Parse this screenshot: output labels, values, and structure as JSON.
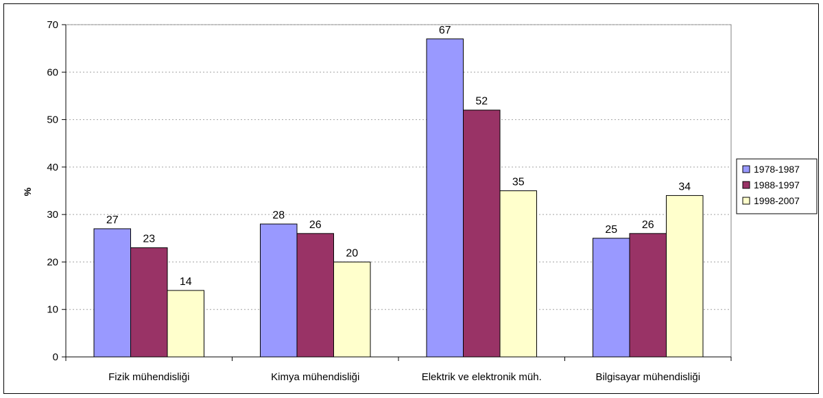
{
  "chart_data": {
    "type": "bar",
    "title": "",
    "xlabel": "",
    "ylabel": "%",
    "ylim": [
      0,
      70
    ],
    "yticks": [
      0,
      10,
      20,
      30,
      40,
      50,
      60,
      70
    ],
    "grid": true,
    "legend_position": "right",
    "categories": [
      "Fizik mühendisliği",
      "Kimya mühendisliği",
      "Elektrik ve elektronik müh.",
      "Bilgisayar mühendisliği"
    ],
    "series": [
      {
        "name": "1978-1987",
        "color": "#9999ff",
        "values": [
          27,
          28,
          67,
          25
        ]
      },
      {
        "name": "1988-1997",
        "color": "#993366",
        "values": [
          23,
          26,
          52,
          26
        ]
      },
      {
        "name": "1998-2007",
        "color": "#ffffcc",
        "values": [
          14,
          20,
          35,
          34
        ]
      }
    ]
  }
}
